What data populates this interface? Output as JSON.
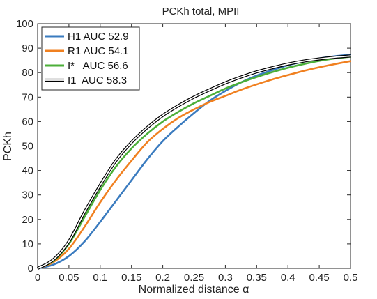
{
  "chart_data": {
    "type": "line",
    "title": "PCKh total, MPII",
    "xlabel": "Normalized distance α",
    "ylabel": "PCKh",
    "xlim": [
      0,
      0.5
    ],
    "ylim": [
      0,
      100
    ],
    "x_ticks": [
      "0",
      "0.05",
      "0.1",
      "0.15",
      "0.2",
      "0.25",
      "0.3",
      "0.35",
      "0.4",
      "0.45",
      "0.5"
    ],
    "y_ticks": [
      "0",
      "10",
      "20",
      "30",
      "40",
      "50",
      "60",
      "70",
      "80",
      "90",
      "100"
    ],
    "grid": false,
    "legend_position": "top-left",
    "x": [
      0,
      0.025,
      0.05,
      0.075,
      0.1,
      0.125,
      0.15,
      0.175,
      0.2,
      0.225,
      0.25,
      0.275,
      0.3,
      0.325,
      0.35,
      0.375,
      0.4,
      0.425,
      0.45,
      0.475,
      0.5
    ],
    "series": [
      {
        "name": "H1 AUC 52.9",
        "color": "#3a7bbf",
        "style": "solid",
        "values": [
          0,
          1.5,
          5,
          11,
          19,
          27.5,
          36,
          44.5,
          52,
          58,
          63.5,
          68.5,
          72.5,
          76,
          78.8,
          81,
          83,
          84.5,
          85.8,
          86.7,
          87.3
        ]
      },
      {
        "name": "R1 AUC 54.1",
        "color": "#f08020",
        "style": "solid",
        "values": [
          0,
          2.5,
          8,
          17,
          27,
          36,
          44,
          51.5,
          57,
          61.5,
          65,
          68,
          70.5,
          73,
          75.2,
          77.2,
          79,
          80.7,
          82.2,
          83.5,
          84.7
        ]
      },
      {
        "name": "I*   AUC 56.6",
        "color": "#4caf3a",
        "style": "solid",
        "values": [
          0,
          3,
          10,
          21,
          32,
          41.5,
          49,
          55,
          60,
          64,
          67.5,
          70.5,
          73.5,
          76,
          78.2,
          80.2,
          82,
          83.5,
          84.8,
          85.8,
          86.5
        ]
      },
      {
        "name": "I1  AUC 58.3",
        "color": "#000000",
        "style": "double",
        "values": [
          0,
          3.5,
          11,
          23,
          34,
          44,
          51.5,
          57.5,
          62.5,
          66.5,
          70,
          73,
          75.8,
          78.2,
          80.3,
          82,
          83.5,
          84.7,
          85.6,
          86.3,
          86.8
        ]
      }
    ]
  }
}
